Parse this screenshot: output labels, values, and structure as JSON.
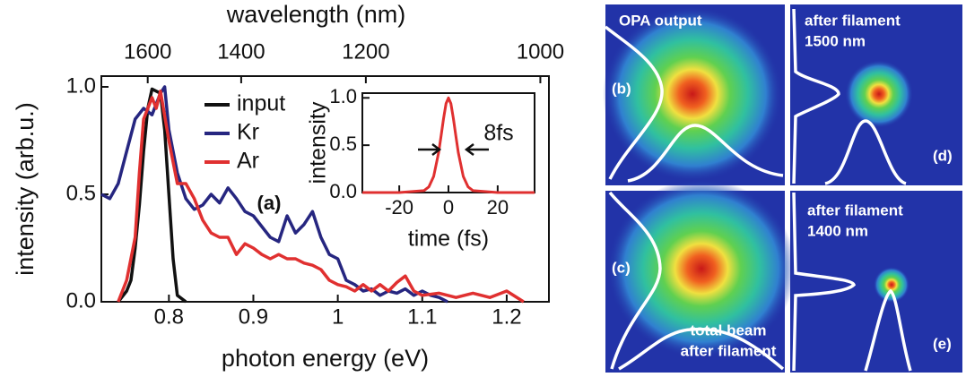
{
  "chart_data": [
    {
      "type": "line",
      "xlabel": "photon energy (eV)",
      "ylabel": "intensity (arb.u.)",
      "x2label": "wavelength (nm)",
      "annotation": "(a)",
      "xlim": [
        0.72,
        1.25
      ],
      "xticks": [
        0.8,
        0.9,
        1.0,
        1.1,
        1.2
      ],
      "ylim": [
        0,
        1.05
      ],
      "yticks": [
        {
          "value": 0,
          "label": "0.0"
        },
        0.5,
        {
          "value": 1,
          "label": "1.0"
        }
      ],
      "x2ticks": [
        1600,
        1400,
        1200,
        1000
      ],
      "series": [
        {
          "name": "input",
          "color": "#111111",
          "x": [
            0.74,
            0.75,
            0.755,
            0.76,
            0.765,
            0.77,
            0.775,
            0.78,
            0.785,
            0.79,
            0.795,
            0.8,
            0.805,
            0.81,
            0.82
          ],
          "values": [
            0.0,
            0.05,
            0.1,
            0.25,
            0.45,
            0.7,
            0.9,
            0.99,
            0.98,
            0.97,
            0.8,
            0.5,
            0.2,
            0.03,
            0.0
          ]
        },
        {
          "name": "Kr",
          "color": "#262680",
          "x": [
            0.72,
            0.73,
            0.74,
            0.75,
            0.76,
            0.77,
            0.78,
            0.79,
            0.795,
            0.8,
            0.81,
            0.82,
            0.83,
            0.84,
            0.85,
            0.86,
            0.87,
            0.88,
            0.89,
            0.9,
            0.91,
            0.92,
            0.93,
            0.94,
            0.95,
            0.96,
            0.97,
            0.98,
            0.99,
            1.0,
            1.01,
            1.02,
            1.03,
            1.04,
            1.05,
            1.06,
            1.07,
            1.08,
            1.09,
            1.1,
            1.11,
            1.12,
            1.13
          ],
          "values": [
            0.5,
            0.48,
            0.55,
            0.7,
            0.85,
            0.9,
            0.87,
            0.97,
            1.0,
            0.8,
            0.6,
            0.48,
            0.43,
            0.45,
            0.5,
            0.46,
            0.53,
            0.48,
            0.42,
            0.4,
            0.35,
            0.3,
            0.28,
            0.4,
            0.32,
            0.36,
            0.42,
            0.3,
            0.22,
            0.2,
            0.1,
            0.08,
            0.05,
            0.06,
            0.03,
            0.05,
            0.04,
            0.06,
            0.03,
            0.05,
            0.03,
            0.02,
            0.0
          ]
        },
        {
          "name": "Ar",
          "color": "#e03030",
          "x": [
            0.74,
            0.75,
            0.76,
            0.765,
            0.77,
            0.78,
            0.785,
            0.79,
            0.8,
            0.81,
            0.82,
            0.83,
            0.84,
            0.85,
            0.86,
            0.87,
            0.88,
            0.89,
            0.9,
            0.91,
            0.92,
            0.93,
            0.94,
            0.95,
            0.96,
            0.97,
            0.98,
            0.99,
            1.0,
            1.01,
            1.02,
            1.03,
            1.04,
            1.05,
            1.06,
            1.07,
            1.08,
            1.09,
            1.1,
            1.12,
            1.14,
            1.16,
            1.18,
            1.2,
            1.22
          ],
          "values": [
            0.0,
            0.1,
            0.3,
            0.6,
            0.85,
            0.95,
            0.9,
            0.98,
            0.75,
            0.55,
            0.55,
            0.48,
            0.38,
            0.32,
            0.3,
            0.3,
            0.22,
            0.27,
            0.25,
            0.22,
            0.2,
            0.22,
            0.2,
            0.2,
            0.18,
            0.17,
            0.15,
            0.1,
            0.08,
            0.07,
            0.05,
            0.08,
            0.05,
            0.08,
            0.05,
            0.09,
            0.12,
            0.05,
            0.03,
            0.04,
            0.02,
            0.04,
            0.02,
            0.05,
            0.0
          ]
        }
      ]
    },
    {
      "type": "line",
      "xlabel": "time (fs)",
      "ylabel": "intensity",
      "annotation": "8fs",
      "xlim": [
        -35,
        35
      ],
      "xticks": [
        -20,
        0,
        20
      ],
      "ylim": [
        0,
        1.05
      ],
      "yticks": [
        {
          "value": 0,
          "label": "0.0"
        },
        0.5,
        {
          "value": 1,
          "label": "1.0"
        }
      ],
      "series": [
        {
          "color": "#e03030",
          "x": [
            -35,
            -20,
            -10,
            -8,
            -6,
            -4,
            -3,
            -2,
            -1,
            0,
            1,
            2,
            3,
            4,
            6,
            8,
            10,
            20,
            35
          ],
          "values": [
            0,
            0,
            0.02,
            0.06,
            0.17,
            0.42,
            0.6,
            0.78,
            0.94,
            1.0,
            0.94,
            0.78,
            0.6,
            0.42,
            0.17,
            0.06,
            0.02,
            0,
            0
          ]
        }
      ]
    }
  ],
  "panels": [
    {
      "label": "(b)",
      "caption": [
        "OPA output"
      ]
    },
    {
      "label": "(d)",
      "caption": [
        "after filament",
        "1500 nm"
      ]
    },
    {
      "label": "(c)",
      "caption": [
        "total beam",
        "after filament"
      ]
    },
    {
      "label": "(e)",
      "caption": [
        "after filament",
        "1400 nm"
      ]
    }
  ]
}
